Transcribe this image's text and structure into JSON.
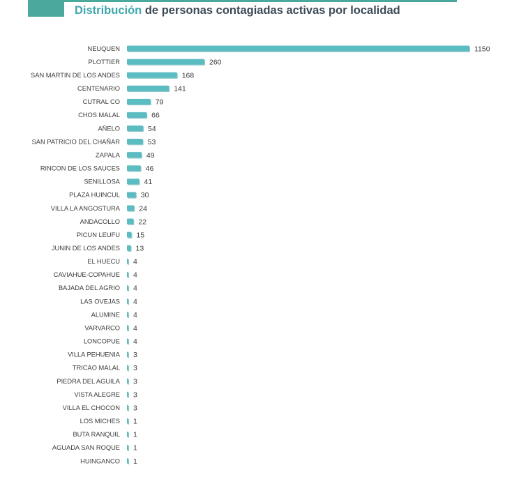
{
  "header": {
    "title_accent": "Distribución",
    "title_rest": " de personas contagiadas activas por localidad"
  },
  "colors": {
    "bar": "#5bbdc2",
    "bar_shadow": "#3f9aa0",
    "accent": "#3ea6ac",
    "rule": "#4aa89c"
  },
  "chart_data": {
    "type": "bar",
    "orientation": "horizontal",
    "title": "Distribución de personas contagiadas activas por localidad",
    "xlabel": "",
    "ylabel": "",
    "xlim": [
      0,
      1150
    ],
    "grid": false,
    "categories": [
      "NEUQUEN",
      "PLOTTIER",
      "SAN MARTIN DE LOS ANDES",
      "CENTENARIO",
      "CUTRAL CO",
      "CHOS MALAL",
      "AÑELO",
      "SAN PATRICIO DEL CHAÑAR",
      "ZAPALA",
      "RINCON DE LOS SAUCES",
      "SENILLOSA",
      "PLAZA HUINCUL",
      "VILLA LA ANGOSTURA",
      "ANDACOLLO",
      "PICUN LEUFU",
      "JUNIN DE LOS ANDES",
      "EL HUECU",
      "CAVIAHUE-COPAHUE",
      "BAJADA DEL AGRIO",
      "LAS OVEJAS",
      "ALUMINE",
      "VARVARCO",
      "LONCOPUE",
      "VILLA PEHUENIA",
      "TRICAO MALAL",
      "PIEDRA DEL AGUILA",
      "VISTA ALEGRE",
      "VILLA EL CHOCON",
      "LOS MICHES",
      "BUTA RANQUIL",
      "AGUADA SAN ROQUE",
      "HUINGANCO"
    ],
    "values": [
      1150,
      260,
      168,
      141,
      79,
      66,
      54,
      53,
      49,
      46,
      41,
      30,
      24,
      22,
      15,
      13,
      4,
      4,
      4,
      4,
      4,
      4,
      4,
      3,
      3,
      3,
      3,
      3,
      1,
      1,
      1,
      1
    ]
  }
}
